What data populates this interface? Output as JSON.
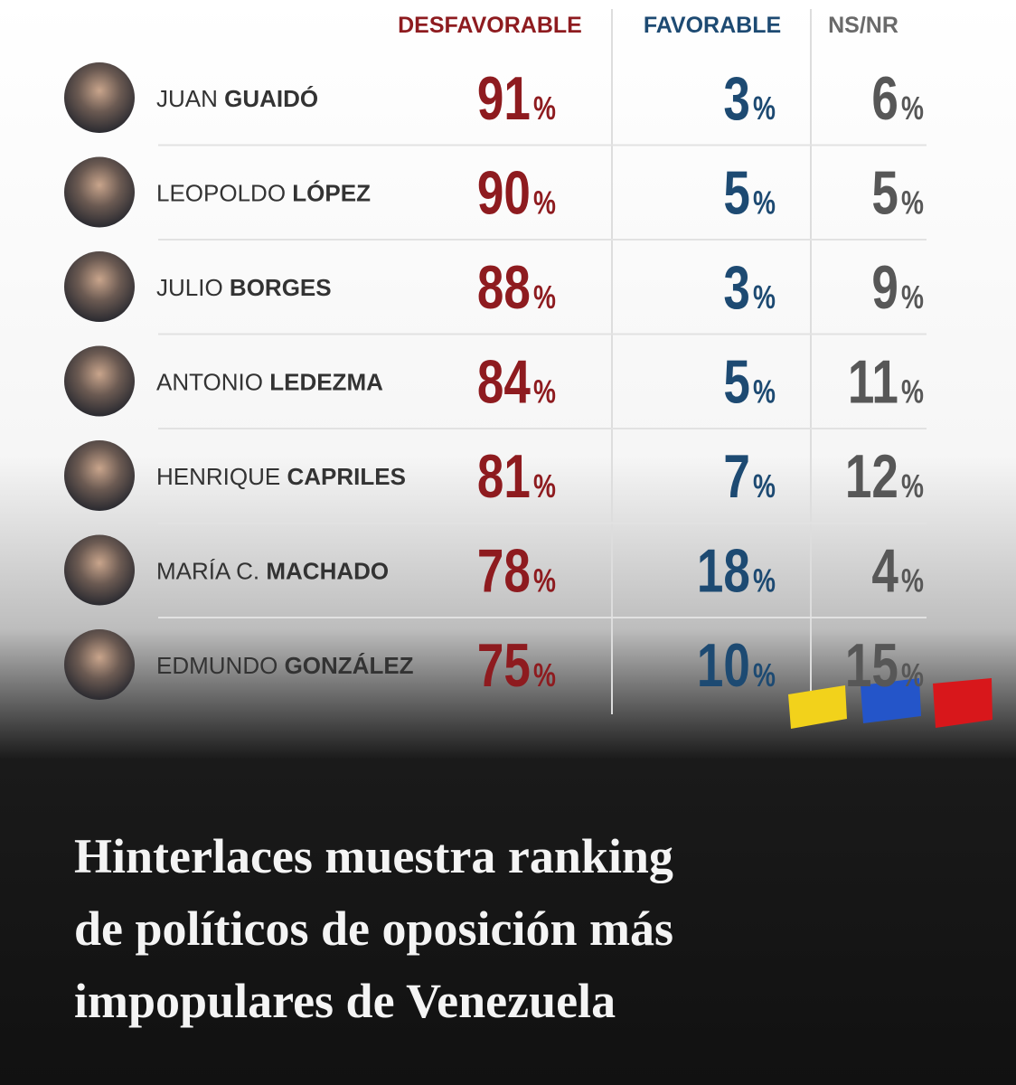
{
  "table": {
    "headers": [
      "DESFAVORABLE",
      "FAVORABLE",
      "NS/NR"
    ],
    "rows": [
      {
        "first": "JUAN",
        "last": "GUAIDÓ",
        "cells": [
          {
            "number": 91,
            "unit": "%"
          },
          {
            "number": 3,
            "unit": "%"
          },
          {
            "number": 6,
            "unit": "%"
          }
        ]
      },
      {
        "first": "LEOPOLDO",
        "last": "LÓPEZ",
        "cells": [
          {
            "number": 90,
            "unit": "%"
          },
          {
            "number": 5,
            "unit": "%"
          },
          {
            "number": 5,
            "unit": "%"
          }
        ]
      },
      {
        "first": "JULIO",
        "last": "BORGES",
        "cells": [
          {
            "number": 88,
            "unit": "%"
          },
          {
            "number": 3,
            "unit": "%"
          },
          {
            "number": 9,
            "unit": "%"
          }
        ]
      },
      {
        "first": "ANTONIO",
        "last": "LEDEZMA",
        "cells": [
          {
            "number": 84,
            "unit": "%"
          },
          {
            "number": 5,
            "unit": "%"
          },
          {
            "number": 11,
            "unit": "%"
          }
        ]
      },
      {
        "first": "HENRIQUE",
        "last": "CAPRILES",
        "cells": [
          {
            "number": 81,
            "unit": "%"
          },
          {
            "number": 7,
            "unit": "%"
          },
          {
            "number": 12,
            "unit": "%"
          }
        ]
      },
      {
        "first": "MARÍA C.",
        "last": "MACHADO",
        "cells": [
          {
            "number": 78,
            "unit": "%"
          },
          {
            "number": 18,
            "unit": "%"
          },
          {
            "number": 4,
            "unit": "%"
          }
        ]
      },
      {
        "first": "EDMUNDO",
        "last": "GONZÁLEZ",
        "cells": [
          {
            "number": 75,
            "unit": "%"
          },
          {
            "number": 10,
            "unit": "%"
          },
          {
            "number": 15,
            "unit": "%"
          }
        ]
      }
    ]
  },
  "headline": {
    "lines": [
      "Hinterlaces muestra ranking",
      "de políticos de oposición más",
      "impopulares de Venezuela"
    ]
  }
}
